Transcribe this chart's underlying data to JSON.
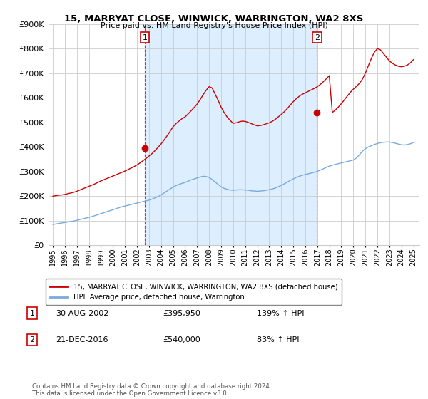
{
  "title": "15, MARRYAT CLOSE, WINWICK, WARRINGTON, WA2 8XS",
  "subtitle": "Price paid vs. HM Land Registry's House Price Index (HPI)",
  "legend_line1": "15, MARRYAT CLOSE, WINWICK, WARRINGTON, WA2 8XS (detached house)",
  "legend_line2": "HPI: Average price, detached house, Warrington",
  "annotation1": [
    "1",
    "30-AUG-2002",
    "£395,950",
    "139% ↑ HPI"
  ],
  "annotation2": [
    "2",
    "21-DEC-2016",
    "£540,000",
    "83% ↑ HPI"
  ],
  "sale1_year": 2002.664,
  "sale1_price": 395950,
  "sale2_year": 2016.972,
  "sale2_price": 540000,
  "ylim": [
    0,
    900000
  ],
  "xlim": [
    1994.7,
    2025.5
  ],
  "red_color": "#cc0000",
  "blue_color": "#7aaadd",
  "shade_color": "#ddeeff",
  "marker_box_color": "#cc0000",
  "footer": "Contains HM Land Registry data © Crown copyright and database right 2024.\nThis data is licensed under the Open Government Licence v3.0.",
  "hpi_years": [
    1995,
    1995.25,
    1995.5,
    1995.75,
    1996,
    1996.25,
    1996.5,
    1996.75,
    1997,
    1997.25,
    1997.5,
    1997.75,
    1998,
    1998.25,
    1998.5,
    1998.75,
    1999,
    1999.25,
    1999.5,
    1999.75,
    2000,
    2000.25,
    2000.5,
    2000.75,
    2001,
    2001.25,
    2001.5,
    2001.75,
    2002,
    2002.25,
    2002.5,
    2002.75,
    2003,
    2003.25,
    2003.5,
    2003.75,
    2004,
    2004.25,
    2004.5,
    2004.75,
    2005,
    2005.25,
    2005.5,
    2005.75,
    2006,
    2006.25,
    2006.5,
    2006.75,
    2007,
    2007.25,
    2007.5,
    2007.75,
    2008,
    2008.25,
    2008.5,
    2008.75,
    2009,
    2009.25,
    2009.5,
    2009.75,
    2010,
    2010.25,
    2010.5,
    2010.75,
    2011,
    2011.25,
    2011.5,
    2011.75,
    2012,
    2012.25,
    2012.5,
    2012.75,
    2013,
    2013.25,
    2013.5,
    2013.75,
    2014,
    2014.25,
    2014.5,
    2014.75,
    2015,
    2015.25,
    2015.5,
    2015.75,
    2016,
    2016.25,
    2016.5,
    2016.75,
    2017,
    2017.25,
    2017.5,
    2017.75,
    2018,
    2018.25,
    2018.5,
    2018.75,
    2019,
    2019.25,
    2019.5,
    2019.75,
    2020,
    2020.25,
    2020.5,
    2020.75,
    2021,
    2021.25,
    2021.5,
    2021.75,
    2022,
    2022.25,
    2022.5,
    2022.75,
    2023,
    2023.25,
    2023.5,
    2023.75,
    2024,
    2024.25,
    2024.5,
    2024.75,
    2025
  ],
  "hpi_vals": [
    85000,
    87000,
    89000,
    91000,
    93000,
    95000,
    97000,
    99000,
    102000,
    105000,
    108000,
    111000,
    114000,
    117000,
    121000,
    125000,
    129000,
    133000,
    137000,
    141000,
    145000,
    149000,
    153000,
    157000,
    160000,
    163000,
    166000,
    169000,
    172000,
    175000,
    178000,
    181000,
    184000,
    188000,
    193000,
    198000,
    205000,
    213000,
    221000,
    229000,
    237000,
    243000,
    248000,
    252000,
    256000,
    261000,
    266000,
    270000,
    274000,
    278000,
    281000,
    280000,
    276000,
    268000,
    258000,
    248000,
    238000,
    232000,
    228000,
    225000,
    224000,
    225000,
    226000,
    226000,
    225000,
    224000,
    222000,
    221000,
    220000,
    221000,
    222000,
    224000,
    226000,
    229000,
    233000,
    238000,
    244000,
    250000,
    257000,
    264000,
    270000,
    276000,
    281000,
    285000,
    288000,
    291000,
    294000,
    297000,
    301000,
    306000,
    311000,
    317000,
    322000,
    326000,
    329000,
    332000,
    335000,
    338000,
    341000,
    344000,
    347000,
    355000,
    368000,
    382000,
    393000,
    400000,
    405000,
    410000,
    414000,
    417000,
    419000,
    420000,
    420000,
    418000,
    415000,
    412000,
    409000,
    408000,
    410000,
    413000,
    418000
  ],
  "red_years": [
    1995,
    1995.25,
    1995.5,
    1995.75,
    1996,
    1996.25,
    1996.5,
    1996.75,
    1997,
    1997.25,
    1997.5,
    1997.75,
    1998,
    1998.25,
    1998.5,
    1998.75,
    1999,
    1999.25,
    1999.5,
    1999.75,
    2000,
    2000.25,
    2000.5,
    2000.75,
    2001,
    2001.25,
    2001.5,
    2001.75,
    2002,
    2002.25,
    2002.5,
    2002.75,
    2003,
    2003.25,
    2003.5,
    2003.75,
    2004,
    2004.25,
    2004.5,
    2004.75,
    2005,
    2005.25,
    2005.5,
    2005.75,
    2006,
    2006.25,
    2006.5,
    2006.75,
    2007,
    2007.25,
    2007.5,
    2007.75,
    2008,
    2008.25,
    2008.5,
    2008.75,
    2009,
    2009.25,
    2009.5,
    2009.75,
    2010,
    2010.25,
    2010.5,
    2010.75,
    2011,
    2011.25,
    2011.5,
    2011.75,
    2012,
    2012.25,
    2012.5,
    2012.75,
    2013,
    2013.25,
    2013.5,
    2013.75,
    2014,
    2014.25,
    2014.5,
    2014.75,
    2015,
    2015.25,
    2015.5,
    2015.75,
    2016,
    2016.25,
    2016.5,
    2016.75,
    2017,
    2017.25,
    2017.5,
    2017.75,
    2018,
    2018.25,
    2018.5,
    2018.75,
    2019,
    2019.25,
    2019.5,
    2019.75,
    2020,
    2020.25,
    2020.5,
    2020.75,
    2021,
    2021.25,
    2021.5,
    2021.75,
    2022,
    2022.25,
    2022.5,
    2022.75,
    2023,
    2023.25,
    2023.5,
    2023.75,
    2024,
    2024.25,
    2024.5,
    2024.75,
    2025
  ],
  "red_vals": [
    200000,
    202000,
    204000,
    205000,
    207000,
    210000,
    213000,
    216000,
    220000,
    225000,
    230000,
    235000,
    240000,
    245000,
    250000,
    256000,
    262000,
    267000,
    272000,
    277000,
    282000,
    287000,
    292000,
    297000,
    302000,
    308000,
    314000,
    320000,
    327000,
    335000,
    344000,
    353000,
    363000,
    373000,
    385000,
    398000,
    412000,
    428000,
    445000,
    463000,
    482000,
    495000,
    505000,
    515000,
    522000,
    534000,
    547000,
    560000,
    574000,
    592000,
    612000,
    630000,
    645000,
    640000,
    615000,
    590000,
    562000,
    540000,
    522000,
    508000,
    496000,
    498000,
    502000,
    505000,
    504000,
    500000,
    495000,
    490000,
    486000,
    487000,
    490000,
    494000,
    498000,
    504000,
    512000,
    522000,
    532000,
    543000,
    556000,
    570000,
    584000,
    596000,
    606000,
    614000,
    620000,
    626000,
    632000,
    638000,
    645000,
    654000,
    665000,
    677000,
    690000,
    540000,
    550000,
    562000,
    576000,
    591000,
    607000,
    622000,
    635000,
    646000,
    658000,
    675000,
    700000,
    730000,
    760000,
    785000,
    800000,
    795000,
    780000,
    765000,
    750000,
    740000,
    733000,
    728000,
    726000,
    728000,
    733000,
    742000,
    755000
  ]
}
